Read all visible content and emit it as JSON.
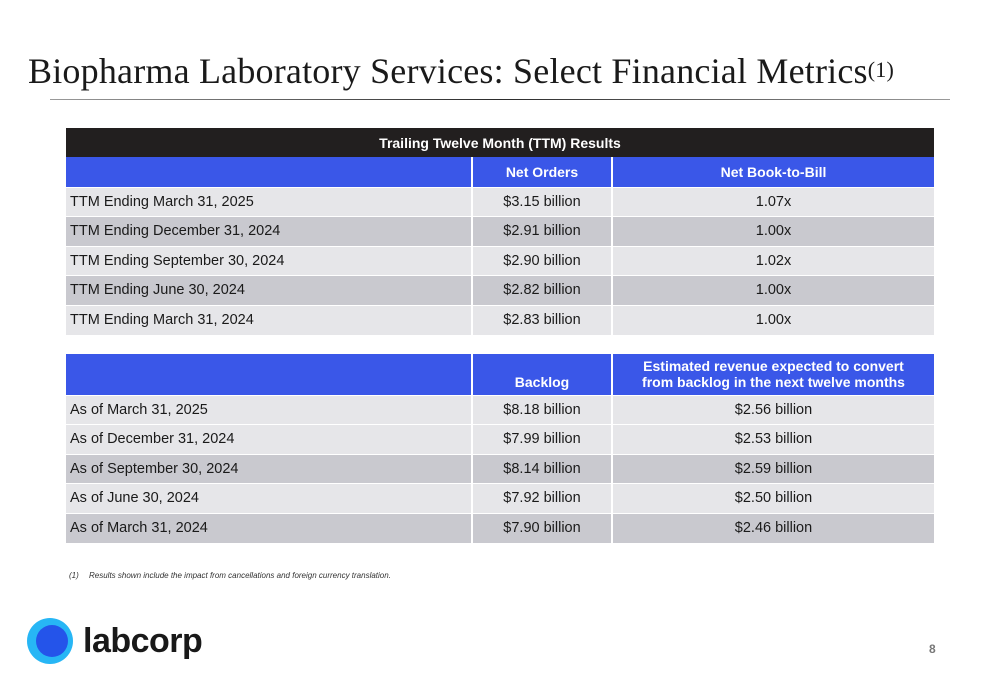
{
  "title": {
    "text": "Biopharma Laboratory Services: Select Financial Metrics",
    "footnote_ref": "(1)"
  },
  "ttm_table": {
    "banner": "Trailing Twelve Month (TTM) Results",
    "headers": [
      "",
      "Net Orders",
      "Net Book-to-Bill"
    ],
    "rows": [
      [
        "TTM Ending March 31, 2025",
        "$3.15 billion",
        "1.07x"
      ],
      [
        "TTM Ending December 31, 2024",
        "$2.91 billion",
        "1.00x"
      ],
      [
        "TTM Ending September 30, 2024",
        "$2.90 billion",
        "1.02x"
      ],
      [
        "TTM Ending June 30, 2024",
        "$2.82 billion",
        "1.00x"
      ],
      [
        "TTM Ending March 31, 2024",
        "$2.83 billion",
        "1.00x"
      ]
    ]
  },
  "backlog_table": {
    "headers": [
      "",
      "Backlog",
      "Estimated revenue expected to convert",
      "from backlog in the next twelve months"
    ],
    "rows": [
      [
        "As of March 31, 2025",
        "$8.18 billion",
        "$2.56 billion"
      ],
      [
        "As of December 31, 2024",
        "$7.99 billion",
        "$2.53 billion"
      ],
      [
        "As of September 30, 2024",
        "$8.14 billion",
        "$2.59 billion"
      ],
      [
        "As of June 30, 2024",
        "$7.92 billion",
        "$2.50 billion"
      ],
      [
        "As of March 31, 2024",
        "$7.90 billion",
        "$2.46 billion"
      ]
    ]
  },
  "footnote": {
    "marker": "(1)",
    "text": "Results shown include the impact from cancellations and foreign currency translation."
  },
  "logo": {
    "text": "labcorp",
    "icon": "labcorp-logo-icon"
  },
  "page_number": "8",
  "colors": {
    "header_blue": "#3a57e8",
    "banner_black": "#221f1f",
    "row_light": "#e6e6e9",
    "row_dark": "#c9c9cf",
    "logo_light_blue": "#27b6f5",
    "logo_dark_blue": "#2454ea"
  }
}
